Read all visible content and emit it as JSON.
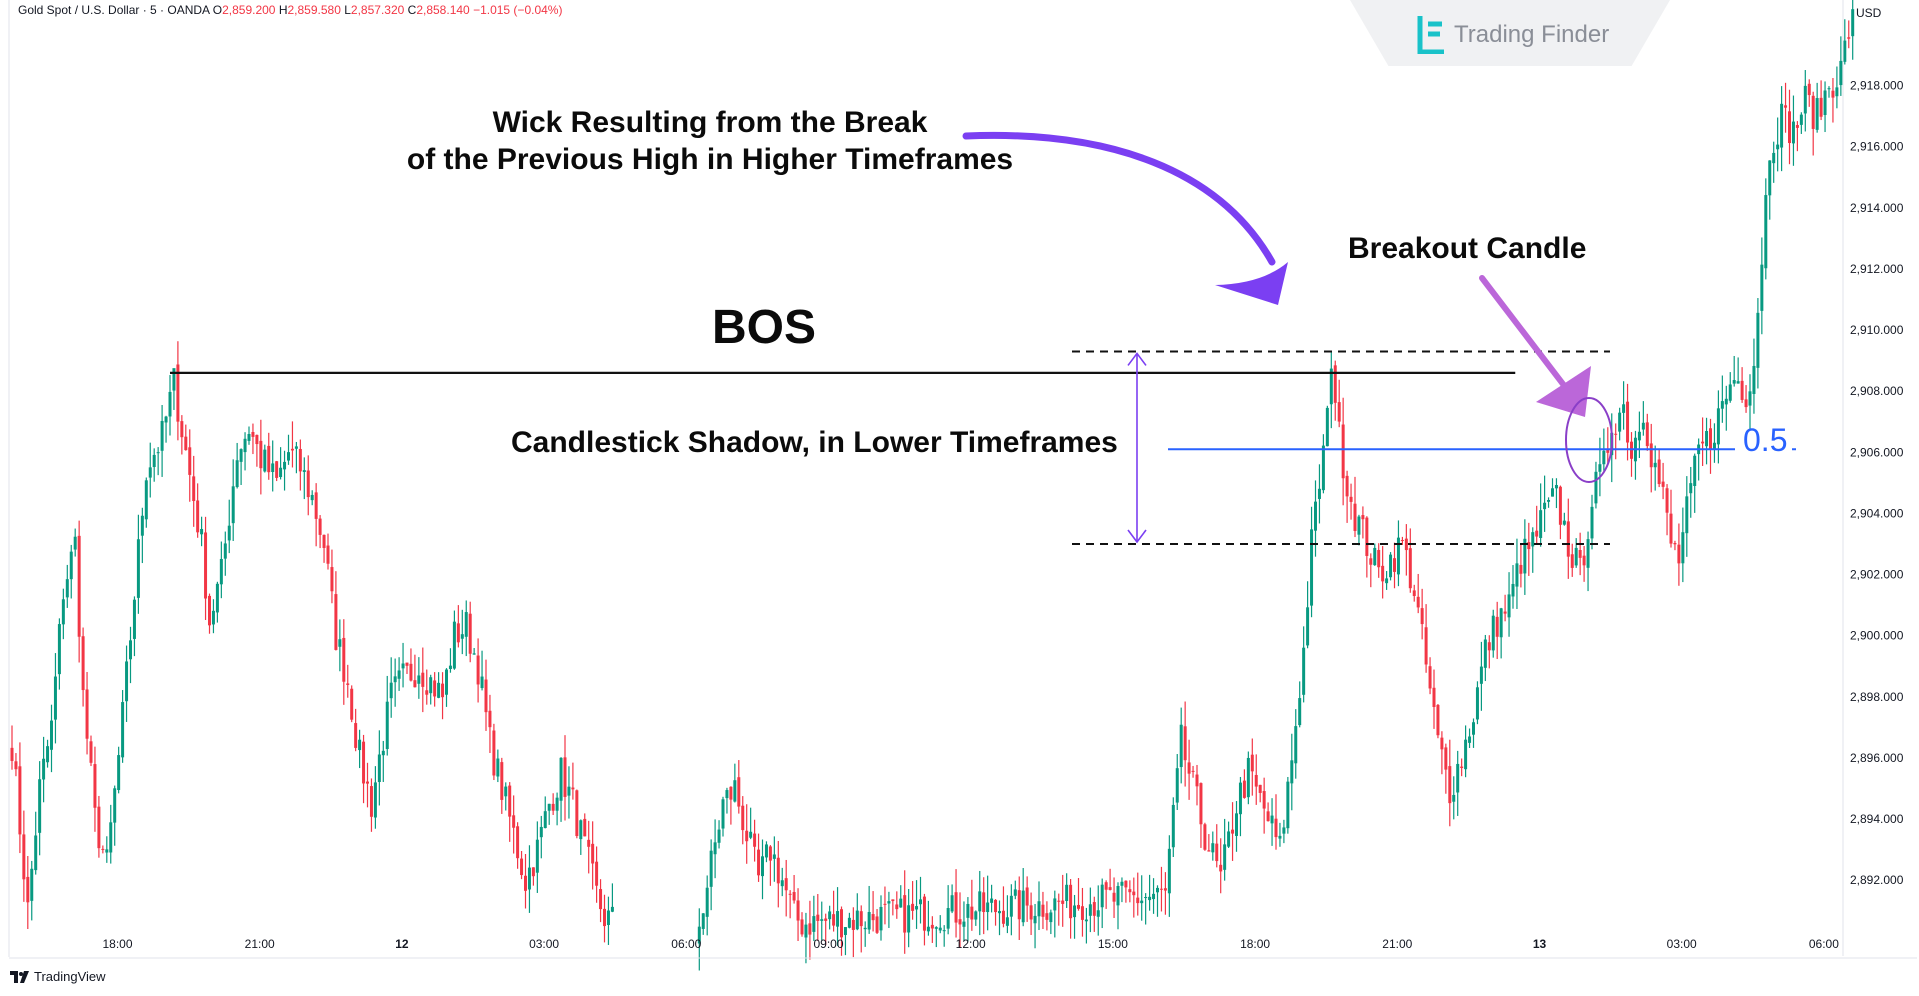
{
  "header": {
    "symbol": "Gold Spot / U.S. Dollar · 5 · OANDA",
    "o_label": "O",
    "o_value": "2,859.200",
    "h_label": "H",
    "h_value": "2,859.580",
    "l_label": "L",
    "l_value": "2,857.320",
    "c_label": "C",
    "c_value": "2,858.140",
    "change": "−1.015 (−0.04%)"
  },
  "watermark": {
    "text": "Trading Finder",
    "logo_icon": "trading-finder-logo-icon"
  },
  "annotations": {
    "wick_line1": "Wick Resulting from the Break",
    "wick_line2": "of the Previous High in Higher Timeframes",
    "breakout": "Breakout Candle",
    "bos": "BOS",
    "shadow": "Candlestick Shadow, in Lower Timeframes",
    "fib_label": "0.5"
  },
  "footer": {
    "brand": "TradingView",
    "brand_icon": "tradingview-logo-icon"
  },
  "colors": {
    "up": "#089981",
    "down": "#f23645",
    "purple": "#7b3ff2",
    "pink": "#bb67d9",
    "blue": "#2962ff",
    "axis": "#131722"
  },
  "chart_data": {
    "type": "candlestick",
    "instrument": "Gold Spot / U.S. Dollar",
    "timeframe": "5",
    "broker": "OANDA",
    "y_unit": "USD",
    "ylim": [
      2890.5,
      2920.8
    ],
    "y_ticks": [
      2892,
      2894,
      2896,
      2898,
      2900,
      2902,
      2904,
      2906,
      2908,
      2910,
      2912,
      2914,
      2916,
      2918
    ],
    "y_tick_labels": [
      "2,892.000",
      "2,894.000",
      "2,896.000",
      "2,898.000",
      "2,900.000",
      "2,902.000",
      "2,904.000",
      "2,906.000",
      "2,908.000",
      "2,910.000",
      "2,912.000",
      "2,914.000",
      "2,916.000",
      "2,918.000"
    ],
    "x_ticks": [
      {
        "label": "18:00",
        "bar": 10
      },
      {
        "label": "21:00",
        "bar": 46
      },
      {
        "label": "12",
        "bar": 82
      },
      {
        "label": "03:00",
        "bar": 118
      },
      {
        "label": "06:00",
        "bar": 154
      },
      {
        "label": "09:00",
        "bar": 190
      },
      {
        "label": "12:00",
        "bar": 226
      },
      {
        "label": "15:00",
        "bar": 262
      },
      {
        "label": "18:00",
        "bar": 298
      },
      {
        "label": "21:00",
        "bar": 334
      },
      {
        "label": "13",
        "bar": 370
      },
      {
        "label": "03:00",
        "bar": 406
      },
      {
        "label": "06:00",
        "bar": 442
      }
    ],
    "bos_level": 2908.6,
    "bos_from_bar": 40,
    "bos_to_bar": 375,
    "fib_0_5_level": 2906.1,
    "shadow_top": 2909.3,
    "shadow_bottom": 2903.0,
    "anchors": [
      [
        0,
        2896.5
      ],
      [
        4,
        2891.0
      ],
      [
        7,
        2895.0
      ],
      [
        10,
        2897.0
      ],
      [
        13,
        2901.5
      ],
      [
        16,
        2903.0
      ],
      [
        18,
        2898.0
      ],
      [
        21,
        2894.0
      ],
      [
        24,
        2892.5
      ],
      [
        27,
        2896.0
      ],
      [
        30,
        2900.0
      ],
      [
        34,
        2905.5
      ],
      [
        38,
        2906.5
      ],
      [
        41,
        2908.3
      ],
      [
        44,
        2906.0
      ],
      [
        48,
        2903.0
      ],
      [
        50,
        2900.5
      ],
      [
        53,
        2902.0
      ],
      [
        57,
        2906.0
      ],
      [
        60,
        2906.8
      ],
      [
        63,
        2905.8
      ],
      [
        67,
        2905.0
      ],
      [
        70,
        2906.0
      ],
      [
        73,
        2905.5
      ],
      [
        76,
        2904.5
      ],
      [
        79,
        2903.0
      ],
      [
        82,
        2900.0
      ],
      [
        85,
        2898.5
      ],
      [
        88,
        2896.0
      ],
      [
        91,
        2894.5
      ],
      [
        93,
        2896.0
      ],
      [
        96,
        2898.0
      ],
      [
        99,
        2898.6
      ],
      [
        103,
        2899.0
      ],
      [
        106,
        2898.5
      ],
      [
        109,
        2898.0
      ],
      [
        112,
        2900.0
      ],
      [
        115,
        2900.3
      ],
      [
        118,
        2899.0
      ],
      [
        121,
        2896.5
      ],
      [
        124,
        2895.0
      ],
      [
        127,
        2893.5
      ],
      [
        130,
        2892.0
      ],
      [
        133,
        2893.0
      ],
      [
        136,
        2894.5
      ],
      [
        139,
        2895.5
      ],
      [
        142,
        2894.5
      ],
      [
        145,
        2893.0
      ],
      [
        148,
        2891.5
      ],
      [
        150,
        2890.8
      ],
      [
        153,
        2890.6
      ],
      [
        174,
        2890.6
      ],
      [
        177,
        2892.5
      ],
      [
        180,
        2894.5
      ],
      [
        183,
        2895.0
      ],
      [
        186,
        2893.5
      ],
      [
        189,
        2892.0
      ],
      [
        192,
        2893.0
      ],
      [
        195,
        2892.0
      ],
      [
        198,
        2890.8
      ],
      [
        200,
        2890.6
      ],
      [
        292,
        2891.5
      ],
      [
        296,
        2896.5
      ],
      [
        299,
        2895.0
      ],
      [
        302,
        2893.5
      ],
      [
        306,
        2892.0
      ],
      [
        310,
        2894.5
      ],
      [
        313,
        2895.5
      ],
      [
        318,
        2894.0
      ],
      [
        321,
        2893.0
      ],
      [
        324,
        2896.0
      ],
      [
        327,
        2899.5
      ],
      [
        329,
        2903.0
      ],
      [
        331,
        2905.0
      ],
      [
        333,
        2907.0
      ],
      [
        334,
        2909.2
      ],
      [
        336,
        2906.5
      ],
      [
        338,
        2905.0
      ],
      [
        340,
        2904.0
      ],
      [
        343,
        2903.0
      ],
      [
        346,
        2902.0
      ],
      [
        349,
        2902.5
      ],
      [
        352,
        2903.0
      ],
      [
        355,
        2901.5
      ],
      [
        358,
        2899.0
      ],
      [
        361,
        2896.5
      ],
      [
        364,
        2895.0
      ],
      [
        367,
        2896.0
      ],
      [
        370,
        2897.5
      ],
      [
        373,
        2899.5
      ],
      [
        376,
        2900.5
      ],
      [
        379,
        2901.0
      ],
      [
        382,
        2902.5
      ],
      [
        385,
        2903.0
      ],
      [
        388,
        2904.0
      ],
      [
        391,
        2904.5
      ],
      [
        394,
        2903.0
      ],
      [
        397,
        2902.0
      ],
      [
        400,
        2904.5
      ],
      [
        403,
        2905.5
      ],
      [
        405,
        2907.0
      ],
      [
        408,
        2907.5
      ],
      [
        410,
        2906.0
      ],
      [
        413,
        2907.5
      ],
      [
        415,
        2906.0
      ],
      [
        418,
        2904.5
      ],
      [
        420,
        2903.0
      ],
      [
        422,
        2902.5
      ],
      [
        424,
        2904.0
      ],
      [
        427,
        2906.0
      ],
      [
        430,
        2906.5
      ],
      [
        433,
        2907.5
      ],
      [
        436,
        2908.5
      ],
      [
        439,
        2908.0
      ],
      [
        441,
        2909.0
      ],
      [
        443,
        2912.5
      ],
      [
        445,
        2916.0
      ],
      [
        448,
        2917.0
      ],
      [
        451,
        2916.5
      ],
      [
        454,
        2917.5
      ],
      [
        457,
        2917.0
      ],
      [
        460,
        2918.0
      ],
      [
        463,
        2918.5
      ],
      [
        466,
        2920.5
      ]
    ]
  }
}
